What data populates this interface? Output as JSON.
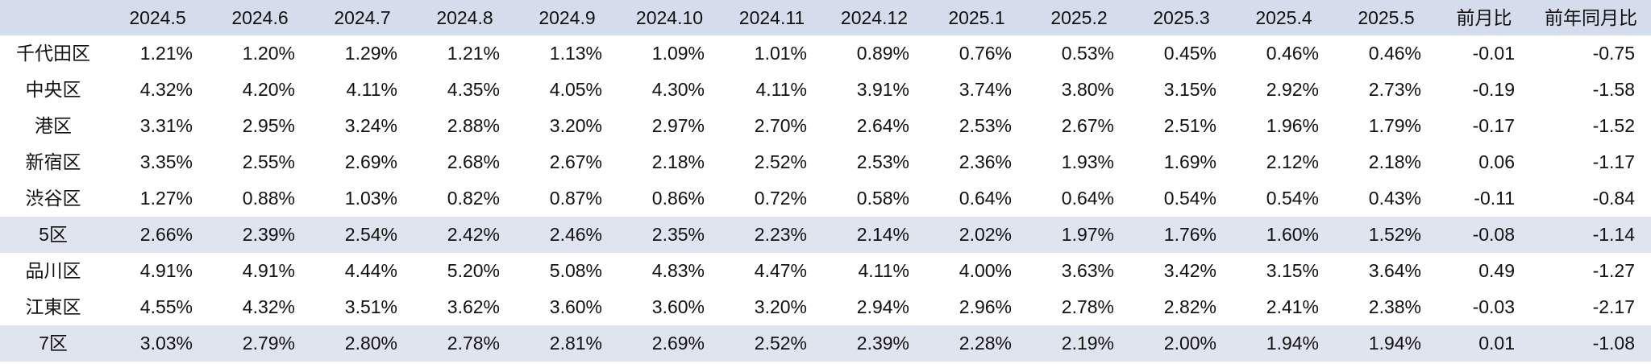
{
  "table": {
    "columns": [
      "2024.5",
      "2024.6",
      "2024.7",
      "2024.8",
      "2024.9",
      "2024.10",
      "2024.11",
      "2024.12",
      "2025.1",
      "2025.2",
      "2025.3",
      "2025.4",
      "2025.5",
      "前月比",
      "前年同月比"
    ],
    "rows": [
      {
        "label": "千代田区",
        "shaded": false,
        "cells": [
          "1.21%",
          "1.20%",
          "1.29%",
          "1.21%",
          "1.13%",
          "1.09%",
          "1.01%",
          "0.89%",
          "0.76%",
          "0.53%",
          "0.45%",
          "0.46%",
          "0.46%",
          "-0.01",
          "-0.75"
        ]
      },
      {
        "label": "中央区",
        "shaded": false,
        "cells": [
          "4.32%",
          "4.20%",
          "4.11%",
          "4.35%",
          "4.05%",
          "4.30%",
          "4.11%",
          "3.91%",
          "3.74%",
          "3.80%",
          "3.15%",
          "2.92%",
          "2.73%",
          "-0.19",
          "-1.58"
        ]
      },
      {
        "label": "港区",
        "shaded": false,
        "cells": [
          "3.31%",
          "2.95%",
          "3.24%",
          "2.88%",
          "3.20%",
          "2.97%",
          "2.70%",
          "2.64%",
          "2.53%",
          "2.67%",
          "2.51%",
          "1.96%",
          "1.79%",
          "-0.17",
          "-1.52"
        ]
      },
      {
        "label": "新宿区",
        "shaded": false,
        "cells": [
          "3.35%",
          "2.55%",
          "2.69%",
          "2.68%",
          "2.67%",
          "2.18%",
          "2.52%",
          "2.53%",
          "2.36%",
          "1.93%",
          "1.69%",
          "2.12%",
          "2.18%",
          "0.06",
          "-1.17"
        ]
      },
      {
        "label": "渋谷区",
        "shaded": false,
        "cells": [
          "1.27%",
          "0.88%",
          "1.03%",
          "0.82%",
          "0.87%",
          "0.86%",
          "0.72%",
          "0.58%",
          "0.64%",
          "0.64%",
          "0.54%",
          "0.54%",
          "0.43%",
          "-0.11",
          "-0.84"
        ]
      },
      {
        "label": "5区",
        "shaded": true,
        "cells": [
          "2.66%",
          "2.39%",
          "2.54%",
          "2.42%",
          "2.46%",
          "2.35%",
          "2.23%",
          "2.14%",
          "2.02%",
          "1.97%",
          "1.76%",
          "1.60%",
          "1.52%",
          "-0.08",
          "-1.14"
        ]
      },
      {
        "label": "品川区",
        "shaded": false,
        "cells": [
          "4.91%",
          "4.91%",
          "4.44%",
          "5.20%",
          "5.08%",
          "4.83%",
          "4.47%",
          "4.11%",
          "4.00%",
          "3.63%",
          "3.42%",
          "3.15%",
          "3.64%",
          "0.49",
          "-1.27"
        ]
      },
      {
        "label": "江東区",
        "shaded": false,
        "cells": [
          "4.55%",
          "4.32%",
          "3.51%",
          "3.62%",
          "3.60%",
          "3.60%",
          "3.20%",
          "2.94%",
          "2.96%",
          "2.78%",
          "2.82%",
          "2.41%",
          "2.38%",
          "-0.03",
          "-2.17"
        ]
      },
      {
        "label": "7区",
        "shaded": true,
        "cells": [
          "3.03%",
          "2.79%",
          "2.80%",
          "2.78%",
          "2.81%",
          "2.69%",
          "2.52%",
          "2.39%",
          "2.28%",
          "2.19%",
          "2.00%",
          "1.94%",
          "1.94%",
          "0.01",
          "-1.08"
        ]
      }
    ]
  },
  "colors": {
    "header_bg": "#d5dceb",
    "shaded_row_bg": "#dfe4ef",
    "text": "#111111"
  }
}
